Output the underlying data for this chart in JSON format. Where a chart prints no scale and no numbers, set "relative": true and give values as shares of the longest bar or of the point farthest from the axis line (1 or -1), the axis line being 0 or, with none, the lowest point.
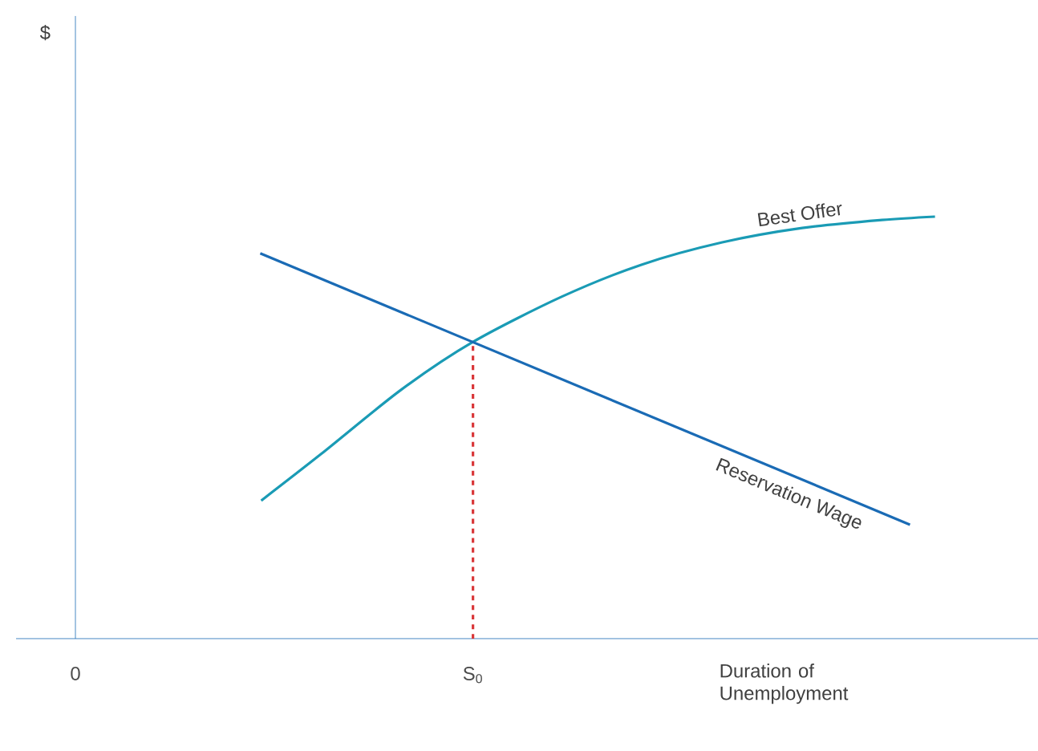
{
  "chart_data": {
    "type": "line",
    "relative": true,
    "xlabel": "Duration of Unemployment",
    "annotations": [
      "$"
    ],
    "xlim": [
      0,
      1
    ],
    "xticks": [
      {
        "value": 0,
        "label": "0"
      },
      {
        "value": 0.413,
        "label": "S$_{0}$"
      }
    ],
    "series": [
      {
        "name": "Best Offer",
        "color": "#1a9bb5",
        "x": [
          0.193,
          0.255,
          0.338,
          0.413,
          0.505,
          0.588,
          0.672,
          0.755,
          0.838,
          0.893
        ],
        "values": [
          0.327,
          0.437,
          0.589,
          0.703,
          0.81,
          0.886,
          0.939,
          0.973,
          0.992,
          1
        ]
      },
      {
        "name": "Reservation Wage",
        "color": "#1a6bb5",
        "x": [
          0.192,
          0.867
        ],
        "values": [
          0.913,
          0.27
        ]
      },
      {
        "color": "#d9383a",
        "line_style": "dashed",
        "x": [
          0.413,
          0.413
        ],
        "values": [
          0,
          0.703
        ]
      }
    ]
  }
}
